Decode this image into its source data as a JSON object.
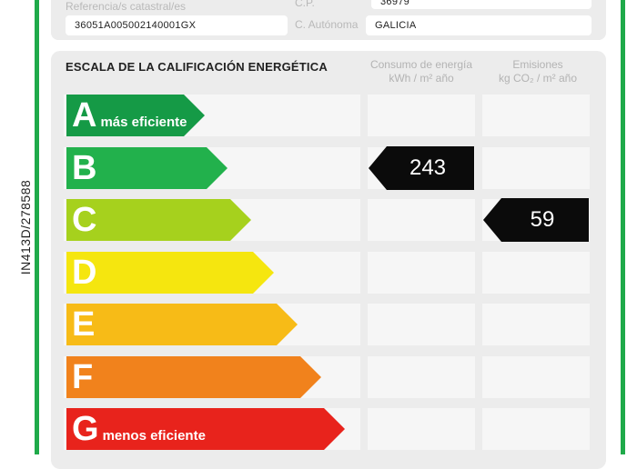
{
  "side_code": "IN413D/278588",
  "header": {
    "ref_label": "Referencia/s catastral/es",
    "ref_value": "36051A005002140001GX",
    "cp_label": "C.P.",
    "cp_value": "36979",
    "autonoma_label": "C. Autónoma",
    "autonoma_value": "GALICIA"
  },
  "scale": {
    "title": "ESCALA DE LA CALIFICACIÓN ENERGÉTICA",
    "col_consumo_line1": "Consumo de energía",
    "col_consumo_line2": "kWh / m² año",
    "col_emisiones_line1": "Emisiones",
    "col_emisiones_line2": "kg CO₂ / m² año",
    "classes": [
      {
        "letter": "A",
        "desc": "más eficiente",
        "color": "#159a46"
      },
      {
        "letter": "B",
        "desc": "",
        "color": "#22b14c"
      },
      {
        "letter": "C",
        "desc": "",
        "color": "#a6d11d"
      },
      {
        "letter": "D",
        "desc": "",
        "color": "#f5e60f"
      },
      {
        "letter": "E",
        "desc": "",
        "color": "#f7bb17"
      },
      {
        "letter": "F",
        "desc": "",
        "color": "#f1821c"
      },
      {
        "letter": "G",
        "desc": "menos eficiente",
        "color": "#e8231c"
      }
    ],
    "consumo": {
      "value": "243",
      "class": "B"
    },
    "emisiones": {
      "value": "59",
      "class": "C"
    }
  }
}
